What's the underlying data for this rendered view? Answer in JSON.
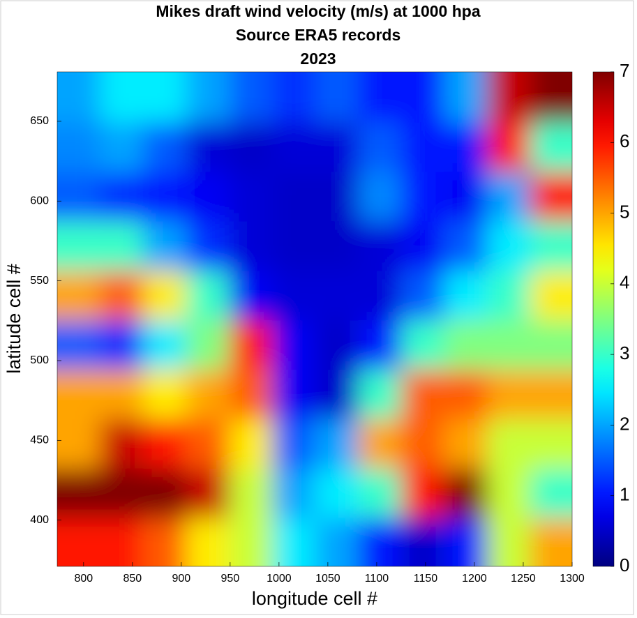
{
  "chart_data": {
    "type": "heatmap",
    "title": [
      "Mikes draft wind velocity (m/s) at 1000 hpa",
      "Source ERA5 records",
      "2023"
    ],
    "xlabel": "longitude cell #",
    "ylabel": "latitude cell #",
    "colormap": "jet",
    "x": [
      795,
      839,
      883,
      927,
      971,
      1015,
      1059,
      1103,
      1147,
      1191,
      1235,
      1279
    ],
    "y": [
      386,
      417,
      448,
      479,
      510,
      541,
      572,
      603,
      634,
      665
    ],
    "z": [
      [
        6,
        6,
        5.5,
        4.5,
        4,
        2.5,
        2,
        1,
        0.5,
        1,
        4,
        5
      ],
      [
        7,
        7,
        7,
        6.5,
        4,
        2,
        2.5,
        3,
        6,
        7,
        4,
        3
      ],
      [
        5,
        6.5,
        6,
        5.5,
        4.5,
        1.5,
        2,
        5,
        5.5,
        5,
        4,
        4
      ],
      [
        5,
        5,
        4.5,
        5,
        5.5,
        0.8,
        0.5,
        3,
        5.5,
        5.5,
        5,
        5
      ],
      [
        1.5,
        1.2,
        2.5,
        3.5,
        6,
        0.8,
        0.5,
        1,
        3,
        3.5,
        3.5,
        3.5
      ],
      [
        5,
        5.5,
        4.5,
        3,
        0.8,
        0.6,
        0.6,
        0.6,
        1.5,
        2.5,
        3,
        4.5
      ],
      [
        3,
        3,
        2,
        1.2,
        0.6,
        0.5,
        0.5,
        0.6,
        0.8,
        1.5,
        2.5,
        3
      ],
      [
        1.5,
        1.2,
        1,
        0.8,
        0.6,
        0.5,
        0.5,
        1.8,
        1,
        0.8,
        2,
        6
      ],
      [
        1.8,
        2,
        1.5,
        0.6,
        0.5,
        0.6,
        0.6,
        1.5,
        1,
        1,
        6,
        3
      ],
      [
        2,
        2.5,
        2.5,
        2,
        1.5,
        1.2,
        1.5,
        1,
        1,
        2,
        6.5,
        7
      ]
    ],
    "xlim": [
      773,
      1300
    ],
    "ylim": [
      371,
      681
    ],
    "xticks": [
      800,
      850,
      900,
      950,
      1000,
      1050,
      1100,
      1150,
      1200,
      1250,
      1300
    ],
    "yticks": [
      400,
      450,
      500,
      550,
      600,
      650
    ],
    "clim": [
      0,
      7
    ],
    "cticks": [
      0,
      1,
      2,
      3,
      4,
      5,
      6,
      7
    ]
  }
}
